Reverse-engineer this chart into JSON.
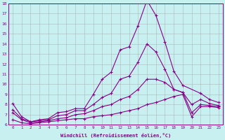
{
  "color": "#880088",
  "bg_color": "#c8f0f0",
  "grid_color": "#aaaaaa",
  "ylim": [
    6,
    18
  ],
  "xlim": [
    -0.5,
    23.5
  ],
  "yticks": [
    6,
    7,
    8,
    9,
    10,
    11,
    12,
    13,
    14,
    15,
    16,
    17,
    18
  ],
  "xtick_labels": [
    "0",
    "1",
    "2",
    "3",
    "4",
    "5",
    "6",
    "7",
    "8",
    "9",
    "10",
    "11",
    "12",
    "13",
    "14",
    "15",
    "16",
    "17",
    "18",
    "19",
    "20",
    "21",
    "22",
    "23"
  ],
  "xlabel": "Windchill (Refroidissement éolien,°C)",
  "marker": "+",
  "markersize": 3,
  "linewidth": 0.8,
  "line1_x": [
    0,
    1,
    2,
    3,
    4,
    5,
    6,
    7,
    8,
    9,
    10,
    11,
    12,
    13,
    14,
    15,
    16,
    17,
    18,
    19,
    21,
    22,
    23
  ],
  "line1_y": [
    8.1,
    6.8,
    6.3,
    6.5,
    6.6,
    7.2,
    7.3,
    7.6,
    7.6,
    9.0,
    10.5,
    11.2,
    13.4,
    13.7,
    15.8,
    18.3,
    16.8,
    14.2,
    11.3,
    9.9,
    9.1,
    8.5,
    8.2
  ],
  "line2_x": [
    0,
    1,
    2,
    3,
    4,
    5,
    6,
    7,
    8,
    9,
    10,
    11,
    12,
    13,
    14,
    15,
    16,
    17,
    18,
    19,
    20,
    21,
    22,
    23
  ],
  "line2_y": [
    7.5,
    6.6,
    6.3,
    6.4,
    6.5,
    6.9,
    7.0,
    7.4,
    7.4,
    8.0,
    8.7,
    9.1,
    10.5,
    10.8,
    12.2,
    14.0,
    13.2,
    11.5,
    9.5,
    9.2,
    8.0,
    8.5,
    8.1,
    7.9
  ],
  "line3_x": [
    0,
    1,
    2,
    3,
    4,
    5,
    6,
    7,
    8,
    9,
    10,
    11,
    12,
    13,
    14,
    15,
    16,
    17,
    18,
    19,
    20,
    21,
    22,
    23
  ],
  "line3_y": [
    7.2,
    6.5,
    6.2,
    6.3,
    6.4,
    6.6,
    6.7,
    7.0,
    7.1,
    7.4,
    7.8,
    8.0,
    8.5,
    8.8,
    9.5,
    10.5,
    10.5,
    10.2,
    9.5,
    9.2,
    7.2,
    8.0,
    7.9,
    7.8
  ],
  "line4_x": [
    0,
    1,
    2,
    3,
    4,
    5,
    6,
    7,
    8,
    9,
    10,
    11,
    12,
    13,
    14,
    15,
    16,
    17,
    18,
    19,
    20,
    21,
    22,
    23
  ],
  "line4_y": [
    6.5,
    6.2,
    6.1,
    6.2,
    6.3,
    6.4,
    6.5,
    6.6,
    6.6,
    6.8,
    6.9,
    7.0,
    7.2,
    7.4,
    7.6,
    8.0,
    8.2,
    8.5,
    8.8,
    9.0,
    6.8,
    7.8,
    7.8,
    7.7
  ]
}
